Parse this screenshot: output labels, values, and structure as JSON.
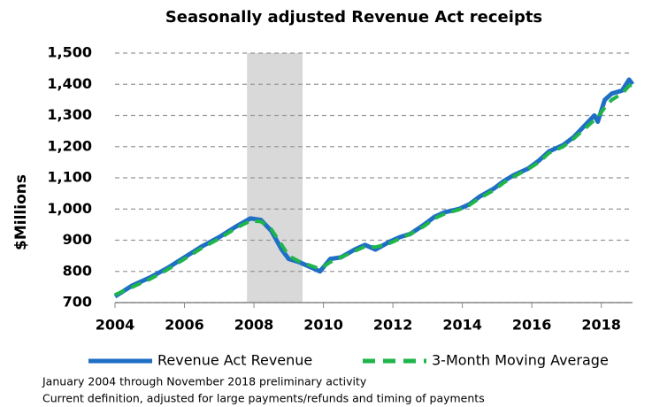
{
  "chart_data": {
    "type": "line",
    "title": "Seasonally adjusted Revenue Act receipts",
    "ylabel": "$Millions",
    "notes": [
      "January 2004 through November 2018 preliminary activity",
      "Current definition, adjusted for large payments/refunds and timing of payments"
    ],
    "x": [
      2004.0,
      2004.5,
      2005.0,
      2005.5,
      2006.0,
      2006.5,
      2007.0,
      2007.5,
      2007.9,
      2008.2,
      2008.5,
      2008.8,
      2009.0,
      2009.3,
      2009.6,
      2009.9,
      2010.2,
      2010.5,
      2010.9,
      2011.2,
      2011.5,
      2011.9,
      2012.2,
      2012.5,
      2012.9,
      2013.2,
      2013.5,
      2013.9,
      2014.2,
      2014.5,
      2014.9,
      2015.2,
      2015.5,
      2015.9,
      2016.2,
      2016.5,
      2016.9,
      2017.2,
      2017.5,
      2017.8,
      2017.9,
      2018.1,
      2018.3,
      2018.6,
      2018.8,
      2018.9
    ],
    "series": [
      {
        "name": "Revenue Act Revenue",
        "color": "#1f6fc5",
        "style": "solid",
        "values": [
          720,
          755,
          780,
          810,
          845,
          880,
          910,
          945,
          970,
          965,
          930,
          870,
          840,
          830,
          815,
          800,
          840,
          845,
          870,
          885,
          870,
          895,
          910,
          920,
          950,
          975,
          990,
          1000,
          1015,
          1040,
          1065,
          1090,
          1110,
          1130,
          1155,
          1185,
          1205,
          1230,
          1265,
          1300,
          1280,
          1350,
          1370,
          1380,
          1415,
          1400
        ]
      },
      {
        "name": "3-Month Moving Average",
        "color": "#1fb54a",
        "style": "dashed",
        "values": [
          725,
          750,
          775,
          805,
          840,
          875,
          905,
          940,
          962,
          960,
          935,
          885,
          850,
          832,
          820,
          808,
          830,
          845,
          865,
          880,
          878,
          890,
          905,
          920,
          945,
          970,
          985,
          998,
          1012,
          1035,
          1060,
          1085,
          1105,
          1128,
          1150,
          1180,
          1200,
          1225,
          1255,
          1285,
          1295,
          1325,
          1350,
          1370,
          1395,
          1398
        ]
      }
    ],
    "shaded_region": [
      2007.8,
      2009.4
    ],
    "xlim": [
      2004,
      2018.9
    ],
    "xticks": [
      2004,
      2006,
      2008,
      2010,
      2012,
      2014,
      2016,
      2018
    ],
    "ylim": [
      700,
      1500
    ],
    "yticks": [
      700,
      800,
      900,
      {
        "value": 1000,
        "label": "1,000"
      },
      {
        "value": 1100,
        "label": "1,100"
      },
      {
        "value": 1200,
        "label": "1,200"
      },
      {
        "value": 1300,
        "label": "1,300"
      },
      {
        "value": 1400,
        "label": "1,400"
      },
      {
        "value": 1500,
        "label": "1,500"
      }
    ],
    "grid": true
  }
}
